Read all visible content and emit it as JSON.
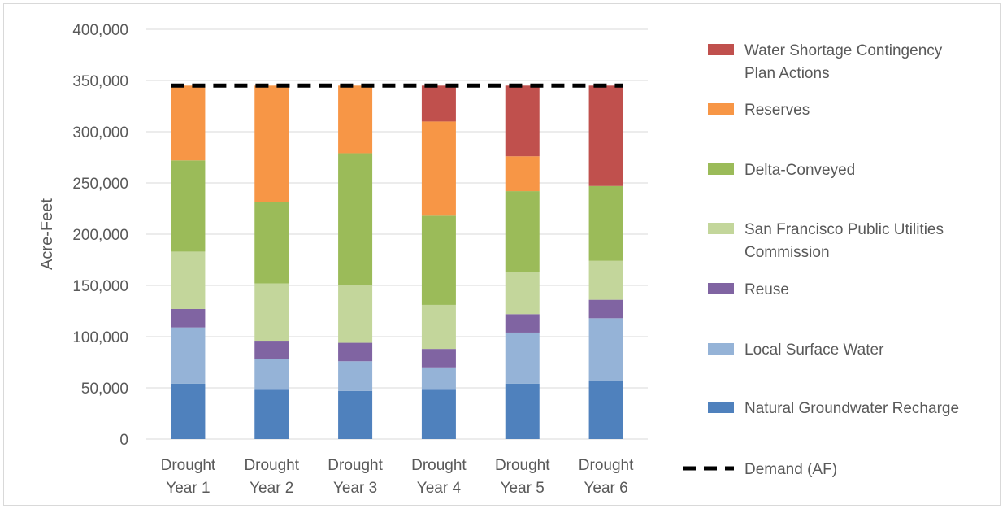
{
  "chart_data": {
    "type": "bar",
    "stacked": true,
    "categories": [
      [
        "Drought",
        "Year 1"
      ],
      [
        "Drought",
        "Year 2"
      ],
      [
        "Drought",
        "Year 3"
      ],
      [
        "Drought",
        "Year 4"
      ],
      [
        "Drought",
        "Year 5"
      ],
      [
        "Drought",
        "Year 6"
      ]
    ],
    "ylabel": "Acre-Feet",
    "ylim": [
      0,
      400000
    ],
    "yticks": [
      0,
      50000,
      100000,
      150000,
      200000,
      250000,
      300000,
      350000,
      400000
    ],
    "ytick_labels": [
      "0",
      "50,000",
      "100,000",
      "150,000",
      "200,000",
      "250,000",
      "300,000",
      "350,000",
      "400,000"
    ],
    "grid": true,
    "legend_position": "right",
    "series": [
      {
        "name": "Natural Groundwater Recharge",
        "color": "#4f81bd",
        "values": [
          54000,
          48000,
          47000,
          48000,
          54000,
          57000
        ]
      },
      {
        "name": "Local Surface Water",
        "color": "#95b3d7",
        "values": [
          55000,
          30000,
          29000,
          22000,
          50000,
          61000
        ]
      },
      {
        "name": "Reuse",
        "color": "#8064a2",
        "values": [
          18000,
          18000,
          18000,
          18000,
          18000,
          18000
        ]
      },
      {
        "name": "San Francisco Public Utilities Commission",
        "color": "#c3d69b",
        "values": [
          56000,
          56000,
          56000,
          43000,
          41000,
          38000
        ]
      },
      {
        "name": "Delta-Conveyed",
        "color": "#9bbb59",
        "values": [
          89000,
          79000,
          129000,
          87000,
          79000,
          73000
        ]
      },
      {
        "name": "Reserves",
        "color": "#f79646",
        "values": [
          73000,
          114000,
          66000,
          92000,
          34000,
          0
        ]
      },
      {
        "name": "Water Shortage Contingency Plan Actions",
        "color": "#c0504d",
        "values": [
          0,
          0,
          0,
          35000,
          69000,
          98000
        ]
      }
    ],
    "line_series": {
      "name": "Demand (AF)",
      "style": "dashed",
      "color": "#000000",
      "values": [
        345000,
        345000,
        345000,
        345000,
        345000,
        345000
      ]
    },
    "legend": [
      {
        "lines": [
          "Water Shortage Contingency",
          "Plan Actions"
        ],
        "color": "#c0504d",
        "kind": "box"
      },
      {
        "lines": [
          "Reserves"
        ],
        "color": "#f79646",
        "kind": "box"
      },
      {
        "lines": [
          "Delta-Conveyed"
        ],
        "color": "#9bbb59",
        "kind": "box"
      },
      {
        "lines": [
          "San Francisco Public Utilities",
          "Commission"
        ],
        "color": "#c3d69b",
        "kind": "box"
      },
      {
        "lines": [
          "Reuse"
        ],
        "color": "#8064a2",
        "kind": "box"
      },
      {
        "lines": [
          "Local Surface Water"
        ],
        "color": "#95b3d7",
        "kind": "box"
      },
      {
        "lines": [
          "Natural Groundwater Recharge"
        ],
        "color": "#4f81bd",
        "kind": "box"
      },
      {
        "lines": [
          "Demand (AF)"
        ],
        "color": "#000000",
        "kind": "dash"
      }
    ]
  }
}
